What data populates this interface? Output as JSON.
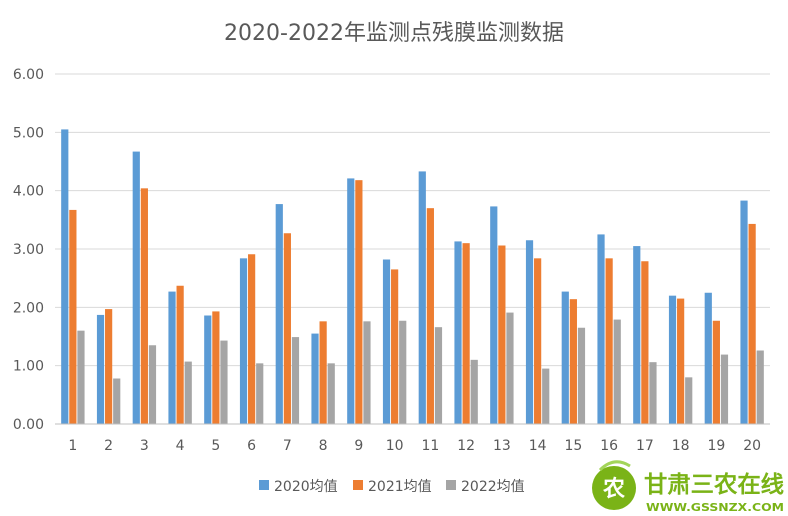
{
  "chart_data": {
    "type": "bar",
    "title": "2020-2022年监测点残膜监测数据",
    "xlabel": "",
    "ylabel": "",
    "categories": [
      "1",
      "2",
      "3",
      "4",
      "5",
      "6",
      "7",
      "8",
      "9",
      "10",
      "11",
      "12",
      "13",
      "14",
      "15",
      "16",
      "17",
      "18",
      "19",
      "20"
    ],
    "series": [
      {
        "name": "2020均值",
        "color": "#5b9bd5",
        "values": [
          5.05,
          1.87,
          4.67,
          2.27,
          1.86,
          2.84,
          3.77,
          1.55,
          4.21,
          2.82,
          4.33,
          3.13,
          3.73,
          3.15,
          2.27,
          3.25,
          3.05,
          2.2,
          2.25,
          3.83
        ]
      },
      {
        "name": "2021均值",
        "color": "#ed7d31",
        "values": [
          3.67,
          1.97,
          4.04,
          2.37,
          1.93,
          2.91,
          3.27,
          1.76,
          4.18,
          2.65,
          3.7,
          3.1,
          3.06,
          2.84,
          2.14,
          2.84,
          2.79,
          2.15,
          1.77,
          3.43
        ]
      },
      {
        "name": "2022均值",
        "color": "#a5a5a5",
        "values": [
          1.6,
          0.78,
          1.35,
          1.07,
          1.43,
          1.04,
          1.49,
          1.04,
          1.76,
          1.77,
          1.66,
          1.1,
          1.91,
          0.95,
          1.65,
          1.79,
          1.06,
          0.8,
          1.19,
          1.26
        ]
      }
    ],
    "ylim": [
      0,
      6
    ],
    "yticks": [
      "0.00",
      "1.00",
      "2.00",
      "3.00",
      "4.00",
      "5.00",
      "6.00"
    ],
    "grid": true,
    "legend_position": "bottom"
  },
  "watermark": {
    "logo_char": "农",
    "brand_text": "甘肃三农在线",
    "url_text": "WWW.GSSNZX.COM",
    "brand_color": "#7ab317",
    "logo_color": "#ffffff"
  }
}
